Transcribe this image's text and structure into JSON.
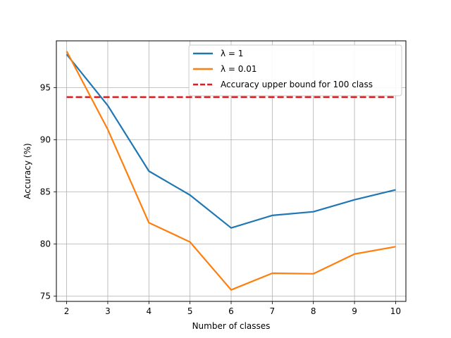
{
  "chart_data": {
    "type": "line",
    "xlabel": "Number of classes",
    "ylabel": "Accuracy (%)",
    "x": [
      2,
      3,
      4,
      5,
      6,
      7,
      8,
      9,
      10
    ],
    "xlim": [
      1.75,
      10.25
    ],
    "ylim": [
      74.5,
      99.5
    ],
    "xticks": [
      "2",
      "3",
      "4",
      "5",
      "6",
      "7",
      "8",
      "9",
      "10"
    ],
    "yticks": [
      "75",
      "80",
      "85",
      "90",
      "95"
    ],
    "grid": true,
    "legend_position": "top-right",
    "series": [
      {
        "name": "λ = 1",
        "color": "#1f77b4",
        "style": "solid",
        "values": [
          98.2,
          93.3,
          87.0,
          84.7,
          81.55,
          82.75,
          83.1,
          84.25,
          85.2
        ]
      },
      {
        "name": "λ = 0.01",
        "color": "#ff7f0e",
        "style": "solid",
        "values": [
          98.5,
          91.0,
          82.05,
          80.2,
          75.6,
          77.2,
          77.15,
          79.05,
          79.75
        ]
      }
    ],
    "reference_lines": [
      {
        "name": "Accuracy upper bound for 100 class",
        "color": "#e41a1c",
        "style": "dashed",
        "y": 94.1,
        "x_from": 2,
        "x_to": 10
      }
    ]
  }
}
